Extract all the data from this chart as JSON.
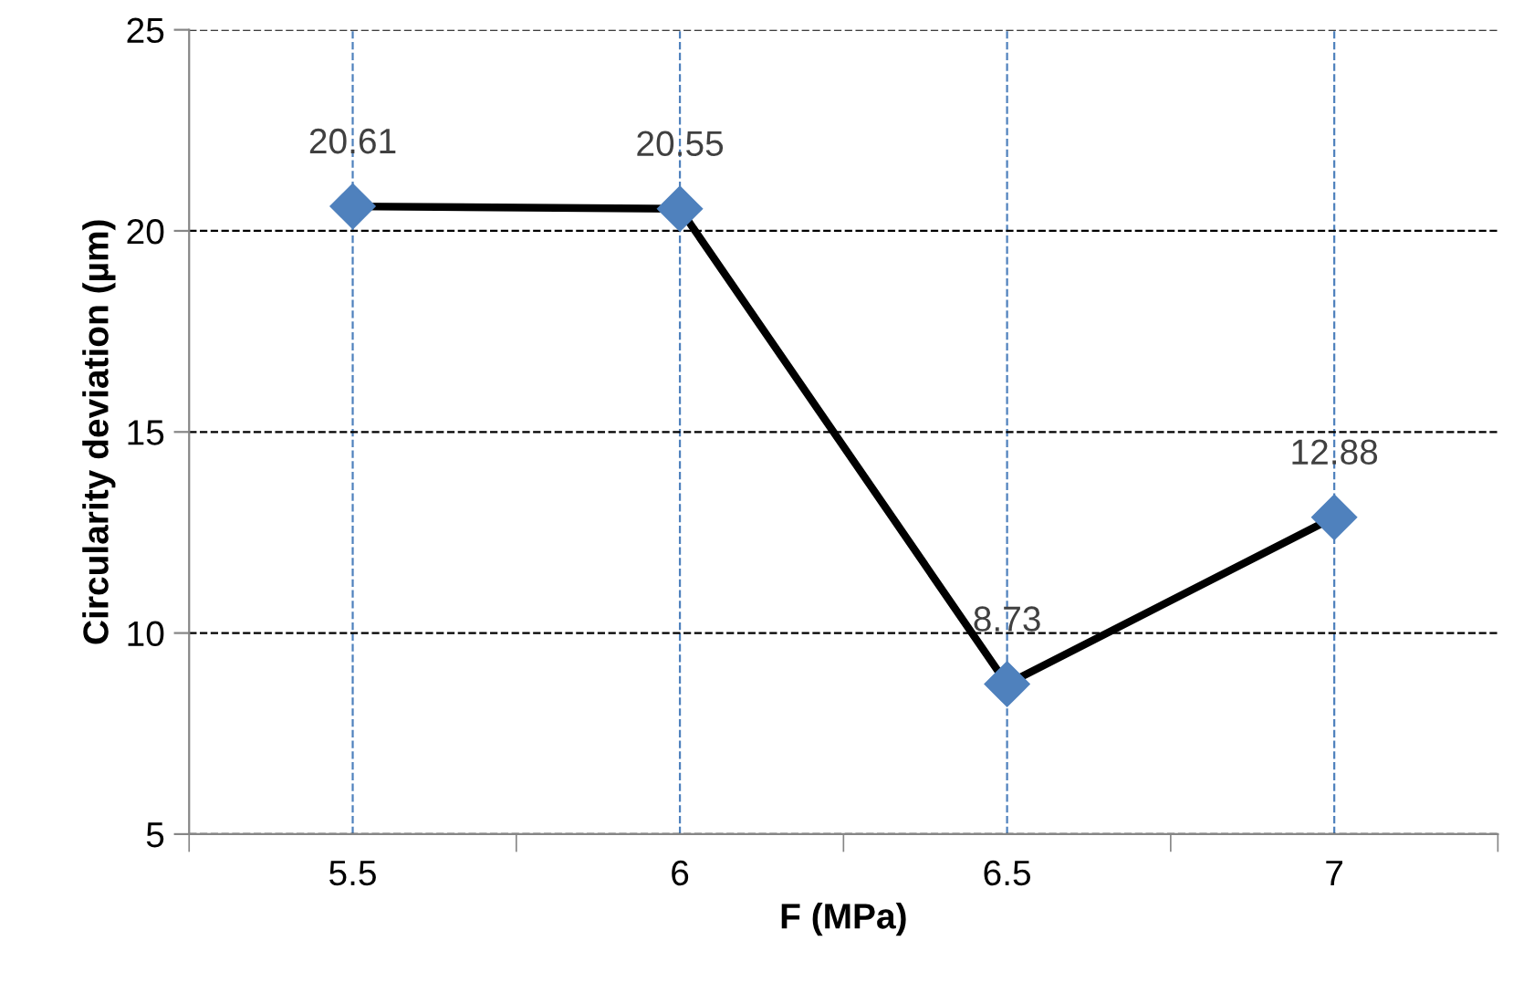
{
  "chart_data": {
    "type": "line",
    "xlabel": "F (MPa)",
    "ylabel": "Circularity deviation (µm)",
    "categories": [
      "5.5",
      "6",
      "6.5",
      "7"
    ],
    "series": [
      {
        "color": "#000000",
        "colors": [
          "#4f81bd",
          "#4f81bd",
          "#4f81bd",
          "#4f81bd"
        ],
        "values": [
          20.61,
          20.55,
          8.73,
          12.88
        ]
      }
    ],
    "ylim": [
      5,
      25
    ],
    "yticks": [
      5,
      10,
      15,
      20,
      25
    ],
    "grid": true,
    "marker": "diamond",
    "line_style": "solid",
    "data_labels": true
  }
}
